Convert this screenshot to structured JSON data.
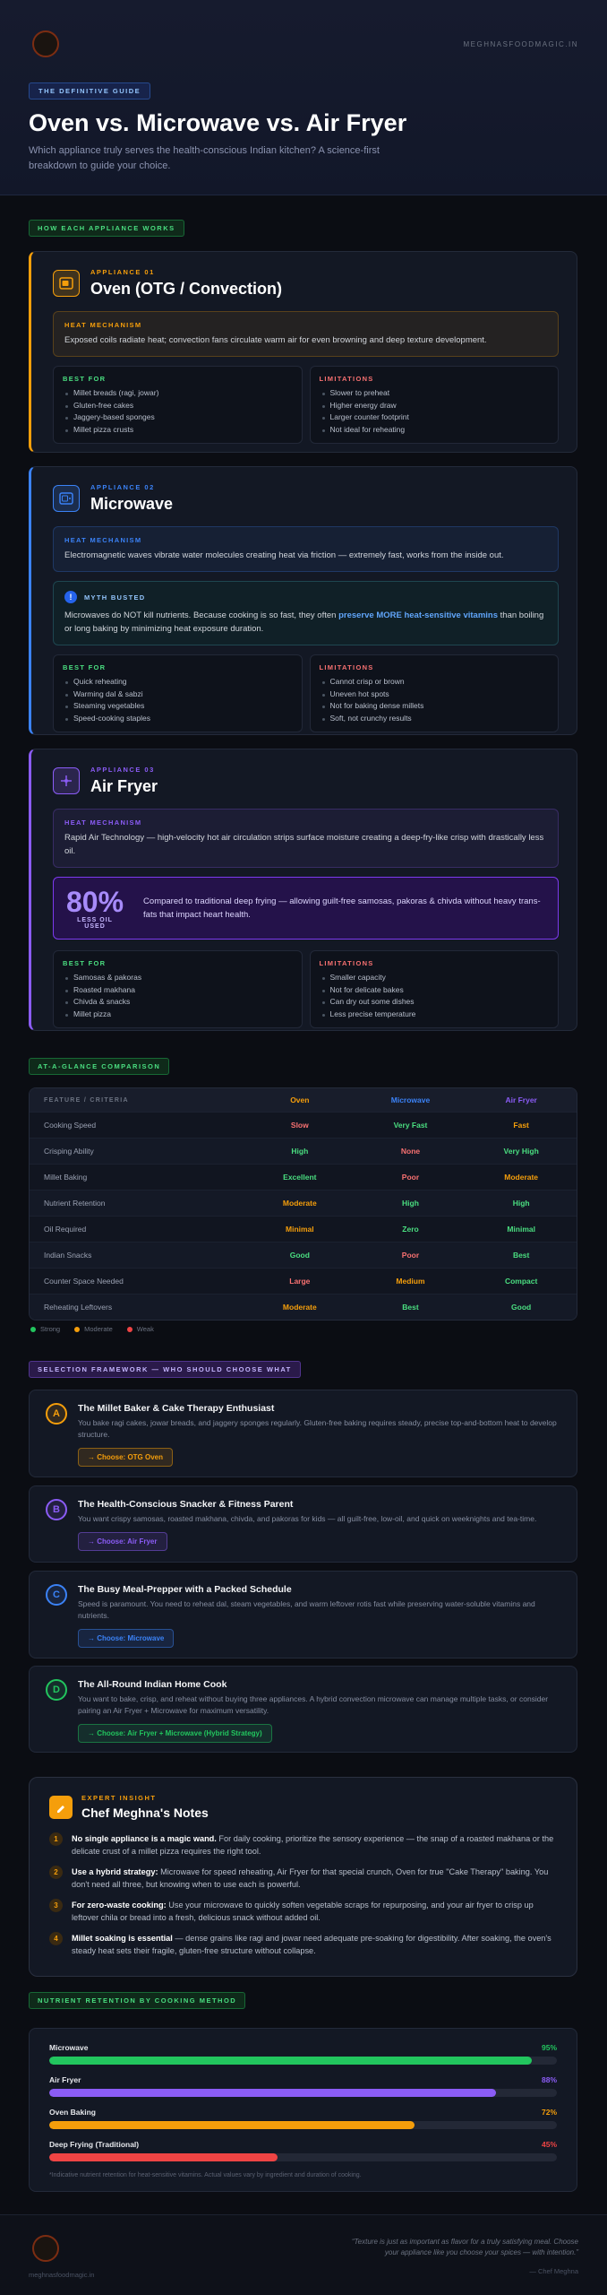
{
  "header": {
    "site": "MEGHNASFOODMAGIC.IN",
    "badge": "THE DEFINITIVE GUIDE",
    "title": "Oven vs. Microwave vs. Air Fryer",
    "subtitle": "Which appliance truly serves the health-conscious Indian kitchen? A science-first breakdown to guide your choice."
  },
  "sections": [
    "HOW EACH APPLIANCE WORKS",
    "AT-A-GLANCE COMPARISON",
    "SELECTION FRAMEWORK — WHO SHOULD CHOOSE WHAT"
  ],
  "appliances": [
    {
      "number": "APPLIANCE 01",
      "name": "Oven (OTG / Convection)",
      "color": "#f59e0b",
      "mechanism_label": "HEAT MECHANISM",
      "mechanism": "Exposed coils radiate heat; convection fans circulate warm air for even browning and deep texture development.",
      "best_for_label": "BEST FOR",
      "best_for": [
        "Millet breads (ragi, jowar)",
        "Gluten-free cakes",
        "Jaggery-based sponges",
        "Millet pizza crusts"
      ],
      "limitations_label": "LIMITATIONS",
      "limitations": [
        "Slower to preheat",
        "Higher energy draw",
        "Larger counter footprint",
        "Not ideal for reheating"
      ]
    },
    {
      "number": "APPLIANCE 02",
      "name": "Microwave",
      "color": "#3b82f6",
      "mechanism_label": "HEAT MECHANISM",
      "mechanism": "Electromagnetic waves vibrate water molecules creating heat via friction — extremely fast, works from the inside out.",
      "myth": {
        "label": "MYTH BUSTED",
        "parts": [
          "Microwaves do NOT kill nutrients. Because cooking is so fast, they often ",
          "preserve MORE heat-sensitive vitamins",
          " than boiling or long baking by minimizing heat exposure duration."
        ]
      },
      "best_for_label": "BEST FOR",
      "best_for": [
        "Quick reheating",
        "Warming dal & sabzi",
        "Steaming vegetables",
        "Speed-cooking staples"
      ],
      "limitations_label": "LIMITATIONS",
      "limitations": [
        "Cannot crisp or brown",
        "Uneven hot spots",
        "Not for baking dense millets",
        "Soft, not crunchy results"
      ]
    },
    {
      "number": "APPLIANCE 03",
      "name": "Air Fryer",
      "color": "#8b5cf6",
      "mechanism_label": "HEAT MECHANISM",
      "mechanism": "Rapid Air Technology — high-velocity hot air circulation strips surface moisture creating a deep-fry-like crisp with drastically less oil.",
      "stat": {
        "value": "80%",
        "label": "LESS OIL USED",
        "text": "Compared to traditional deep frying — allowing guilt-free samosas, pakoras & chivda without heavy trans-fats that impact heart health."
      },
      "best_for_label": "BEST FOR",
      "best_for": [
        "Samosas & pakoras",
        "Roasted makhana",
        "Chivda & snacks",
        "Millet pizza"
      ],
      "limitations_label": "LIMITATIONS",
      "limitations": [
        "Smaller capacity",
        "Not for delicate bakes",
        "Can dry out some dishes",
        "Less precise temperature"
      ]
    }
  ],
  "comparison": {
    "columns": [
      "FEATURE / CRITERIA",
      "Oven",
      "Microwave",
      "Air Fryer"
    ],
    "rows": [
      {
        "feature": "Cooking Speed",
        "cells": [
          {
            "text": "Slow",
            "color": "#f87171"
          },
          {
            "text": "Very Fast",
            "color": "#4ade80"
          },
          {
            "text": "Fast",
            "color": "#f59e0b"
          }
        ]
      },
      {
        "feature": "Crisping Ability",
        "cells": [
          {
            "text": "High",
            "color": "#4ade80"
          },
          {
            "text": "None",
            "color": "#f87171"
          },
          {
            "text": "Very High",
            "color": "#4ade80"
          }
        ]
      },
      {
        "feature": "Millet Baking",
        "cells": [
          {
            "text": "Excellent",
            "color": "#4ade80"
          },
          {
            "text": "Poor",
            "color": "#f87171"
          },
          {
            "text": "Moderate",
            "color": "#f59e0b"
          }
        ]
      },
      {
        "feature": "Nutrient Retention",
        "cells": [
          {
            "text": "Moderate",
            "color": "#f59e0b"
          },
          {
            "text": "High",
            "color": "#4ade80"
          },
          {
            "text": "High",
            "color": "#4ade80"
          }
        ]
      },
      {
        "feature": "Oil Required",
        "cells": [
          {
            "text": "Minimal",
            "color": "#f59e0b"
          },
          {
            "text": "Zero",
            "color": "#4ade80"
          },
          {
            "text": "Minimal",
            "color": "#4ade80"
          }
        ]
      },
      {
        "feature": "Indian Snacks",
        "cells": [
          {
            "text": "Good",
            "color": "#4ade80"
          },
          {
            "text": "Poor",
            "color": "#f87171"
          },
          {
            "text": "Best",
            "color": "#4ade80"
          }
        ]
      },
      {
        "feature": "Counter Space Needed",
        "cells": [
          {
            "text": "Large",
            "color": "#f87171"
          },
          {
            "text": "Medium",
            "color": "#f59e0b"
          },
          {
            "text": "Compact",
            "color": "#4ade80"
          }
        ]
      },
      {
        "feature": "Reheating Leftovers",
        "cells": [
          {
            "text": "Moderate",
            "color": "#f59e0b"
          },
          {
            "text": "Best",
            "color": "#4ade80"
          },
          {
            "text": "Good",
            "color": "#4ade80"
          }
        ]
      }
    ],
    "legend": [
      {
        "label": "Strong",
        "color": "#22c55e"
      },
      {
        "label": "Moderate",
        "color": "#f59e0b"
      },
      {
        "label": "Weak",
        "color": "#ef4444"
      }
    ]
  },
  "personas": [
    {
      "letter": "A",
      "color": "#f59e0b",
      "title": "The Millet Baker & Cake Therapy Enthusiast",
      "text": "You bake ragi cakes, jowar breads, and jaggery sponges regularly. Gluten-free baking requires steady, precise top-and-bottom heat to develop structure.",
      "choice": "→ Choose: OTG Oven"
    },
    {
      "letter": "B",
      "color": "#8b5cf6",
      "title": "The Health-Conscious Snacker & Fitness Parent",
      "text": "You want crispy samosas, roasted makhana, chivda, and pakoras for kids — all guilt-free, low-oil, and quick on weeknights and tea-time.",
      "choice": "→ Choose: Air Fryer"
    },
    {
      "letter": "C",
      "color": "#3b82f6",
      "title": "The Busy Meal-Prepper with a Packed Schedule",
      "text": "Speed is paramount. You need to reheat dal, steam vegetables, and warm leftover rotis fast while preserving water-soluble vitamins and nutrients.",
      "choice": "→ Choose: Microwave"
    },
    {
      "letter": "D",
      "color": "#22c55e",
      "title": "The All-Round Indian Home Cook",
      "text": "You want to bake, crisp, and reheat without buying three appliances. A hybrid convection microwave can manage multiple tasks, or consider pairing an Air Fryer + Microwave for maximum versatility.",
      "choice": "→ Choose: Air Fryer + Microwave (Hybrid Strategy)"
    }
  ],
  "expert": {
    "eyebrow": "EXPERT INSIGHT",
    "title": "Chef Meghna's Notes",
    "notes": [
      {
        "number": "1",
        "lead": "No single appliance is a magic wand.",
        "text": " For daily cooking, prioritize the sensory experience — the snap of a roasted makhana or the delicate crust of a millet pizza requires the right tool."
      },
      {
        "number": "2",
        "lead": "Use a hybrid strategy:",
        "text": " Microwave for speed reheating, Air Fryer for that special crunch, Oven for true \"Cake Therapy\" baking. You don't need all three, but knowing when to use each is powerful."
      },
      {
        "number": "3",
        "lead": "For zero-waste cooking:",
        "text": " Use your microwave to quickly soften vegetable scraps for repurposing, and your air fryer to crisp up leftover chila or bread into a fresh, delicious snack without added oil."
      },
      {
        "number": "4",
        "lead": "Millet soaking is essential",
        "text": " — dense grains like ragi and jowar need adequate pre-soaking for digestibility. After soaking, the oven's steady heat sets their fragile, gluten-free structure without collapse."
      }
    ]
  },
  "chart_data": {
    "type": "bar",
    "title": "NUTRIENT RETENTION BY COOKING METHOD",
    "categories": [
      "Microwave",
      "Air Fryer",
      "Oven Baking",
      "Deep Frying (Traditional)"
    ],
    "values": [
      95,
      88,
      72,
      45
    ],
    "value_labels": [
      "95%",
      "88%",
      "72%",
      "45%"
    ],
    "colors": [
      "#22c55e",
      "#8b5cf6",
      "#f59e0b",
      "#ef4444"
    ],
    "xlim": [
      0,
      100
    ],
    "note": "*Indicative nutrient retention for heat-sensitive vitamins. Actual values vary by ingredient and duration of cooking."
  },
  "footer": {
    "site": "meghnasfoodmagic.in",
    "quote": "“Texture is just as important as flavor for a truly satisfying meal. Choose your appliance like you choose your spices — with intention.”",
    "author": "— Chef Meghna"
  }
}
